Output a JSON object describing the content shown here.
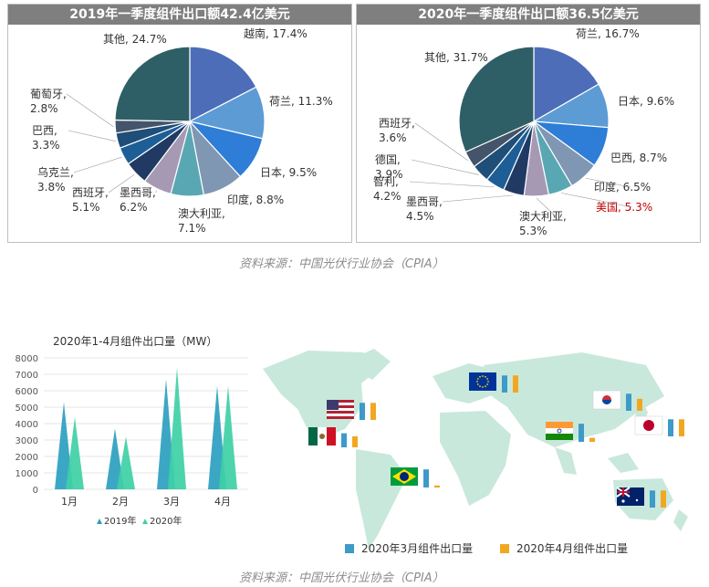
{
  "chart_data": [
    {
      "type": "pie",
      "title": "2019年一季度组件出口额42.4亿美元",
      "slices": [
        {
          "label": "越南,",
          "value": 17.4,
          "value_label": "17.4%",
          "color": "#4d6db8"
        },
        {
          "label": "荷兰,",
          "value": 11.3,
          "value_label": "11.3%",
          "color": "#5d9bd5"
        },
        {
          "label": "日本,",
          "value": 9.5,
          "value_label": "9.5%",
          "color": "#2e7dd7"
        },
        {
          "label": "印度,",
          "value": 8.8,
          "value_label": "8.8%",
          "color": "#7f97b2"
        },
        {
          "label": "澳大利亚,",
          "value": 7.1,
          "value_label": "7.1%",
          "color": "#5aa7b4"
        },
        {
          "label": "墨西哥,",
          "value": 6.2,
          "value_label": "6.2%",
          "color": "#a599b4"
        },
        {
          "label": "西班牙,",
          "value": 5.1,
          "value_label": "5.1%",
          "color": "#213a64"
        },
        {
          "label": "乌克兰,",
          "value": 3.8,
          "value_label": "3.8%",
          "color": "#1d5e96"
        },
        {
          "label": "巴西,",
          "value": 3.3,
          "value_label": "3.3%",
          "color": "#1f4e79"
        },
        {
          "label": "葡萄牙,",
          "value": 2.8,
          "value_label": "2.8%",
          "color": "#44546a"
        },
        {
          "label": "其他,",
          "value": 24.7,
          "value_label": "24.7%",
          "color": "#2f5f66"
        }
      ]
    },
    {
      "type": "pie",
      "title": "2020年一季度组件出口额36.5亿美元",
      "slices": [
        {
          "label": "荷兰,",
          "value": 16.7,
          "value_label": "16.7%",
          "color": "#4d6db8"
        },
        {
          "label": "日本,",
          "value": 9.6,
          "value_label": "9.6%",
          "color": "#5d9bd5"
        },
        {
          "label": "巴西,",
          "value": 8.7,
          "value_label": "8.7%",
          "color": "#2e7dd7"
        },
        {
          "label": "印度,",
          "value": 6.5,
          "value_label": "6.5%",
          "color": "#7f97b2"
        },
        {
          "label": "美国,",
          "value": 5.3,
          "value_label": "5.3%",
          "color": "#5aa7b4"
        },
        {
          "label": "澳大利亚,",
          "value": 5.3,
          "value_label": "5.3%",
          "color": "#a599b4"
        },
        {
          "label": "墨西哥,",
          "value": 4.5,
          "value_label": "4.5%",
          "color": "#213a64"
        },
        {
          "label": "智利,",
          "value": 4.2,
          "value_label": "4.2%",
          "color": "#1d5e96"
        },
        {
          "label": "德国,",
          "value": 3.9,
          "value_label": "3.9%",
          "color": "#1f4e79"
        },
        {
          "label": "西班牙,",
          "value": 3.6,
          "value_label": "3.6%",
          "color": "#44546a"
        },
        {
          "label": "其他,",
          "value": 31.7,
          "value_label": "31.7%",
          "color": "#2f5f66"
        }
      ]
    },
    {
      "type": "bar",
      "title": "2020年1-4月组件出口量（MW）",
      "categories": [
        "1月",
        "2月",
        "3月",
        "4月"
      ],
      "yticks": [
        0,
        1000,
        2000,
        3000,
        4000,
        5000,
        6000,
        7000,
        8000
      ],
      "ylim": [
        0,
        8000
      ],
      "legend_position": "bottom",
      "series": [
        {
          "name": "2019年",
          "values": [
            5300,
            3700,
            6700,
            6300
          ],
          "color": "#2b9fbf"
        },
        {
          "name": "2020年",
          "values": [
            4400,
            3200,
            7400,
            6300
          ],
          "color": "#3ed0a6"
        }
      ]
    },
    {
      "type": "bar",
      "legend_position": "bottom",
      "series_labels": [
        {
          "name": "2020年3月组件出口量",
          "color": "#3d9ac9"
        },
        {
          "name": "2020年4月组件出口量",
          "color": "#f1a820"
        }
      ],
      "countries": [
        {
          "flag": "flag-usa-icon",
          "march": 0.85,
          "april": 0.85
        },
        {
          "flag": "flag-mexico-icon",
          "march": 0.7,
          "april": 0.55
        },
        {
          "flag": "flag-brazil-icon",
          "march": 0.9,
          "april": 0.1
        },
        {
          "flag": "flag-eu-icon",
          "march": 0.85,
          "april": 0.85
        },
        {
          "flag": "flag-india-icon",
          "march": 0.9,
          "april": 0.2
        },
        {
          "flag": "flag-korea-icon",
          "march": 0.85,
          "april": 0.6
        },
        {
          "flag": "flag-japan-icon",
          "march": 0.85,
          "april": 0.85
        },
        {
          "flag": "flag-australia-icon",
          "march": 0.85,
          "april": 0.85
        }
      ]
    }
  ],
  "source_label": "资料来源：中国光伏行业协会（CPIA）"
}
